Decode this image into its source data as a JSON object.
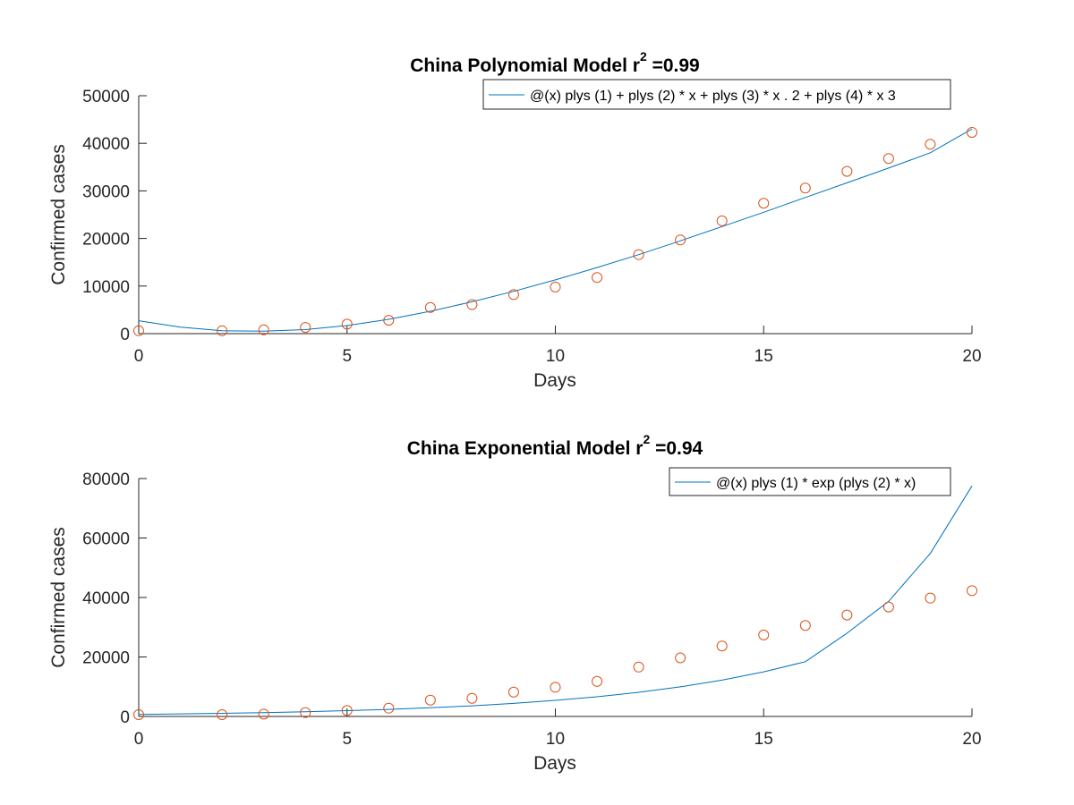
{
  "chart_data": [
    {
      "type": "scatter",
      "title": "China Polynomial Model r",
      "title_superscript": "2",
      "title_suffix": " =0.99",
      "xlabel": "Days",
      "ylabel": "Confirmed cases",
      "xlim": [
        0,
        20
      ],
      "ylim": [
        0,
        50000
      ],
      "xticks": [
        0,
        5,
        10,
        15,
        20
      ],
      "xtick_labels": [
        "0",
        "5",
        "10",
        "15",
        "20"
      ],
      "yticks": [
        0,
        10000,
        20000,
        30000,
        40000,
        50000
      ],
      "ytick_labels": [
        "0",
        "10000",
        "20000",
        "30000",
        "40000",
        "50000"
      ],
      "grid": false,
      "legend_position": "top-right",
      "series": [
        {
          "name": "@(x) plys (1) + plys (2) * x + plys (3) * x . 2 + plys (4) * x  3",
          "kind": "line",
          "color": "#0072BD",
          "x": [
            0,
            1,
            2,
            3,
            4,
            5,
            6,
            7,
            8,
            9,
            10,
            11,
            12,
            13,
            14,
            15,
            16,
            17,
            18,
            19,
            20
          ],
          "y": [
            2700,
            1350,
            600,
            500,
            850,
            1700,
            3000,
            4700,
            6700,
            8900,
            11300,
            13900,
            16600,
            19500,
            22500,
            25500,
            28600,
            31700,
            34800,
            38000,
            43000
          ]
        },
        {
          "name": "",
          "kind": "markers",
          "color": "#D95319",
          "x": [
            0,
            2,
            3,
            4,
            5,
            6,
            7,
            8,
            9,
            10,
            11,
            12,
            13,
            14,
            15,
            16,
            17,
            18,
            19,
            20
          ],
          "y": [
            600,
            600,
            800,
            1300,
            2000,
            2800,
            5500,
            6100,
            8200,
            9800,
            11800,
            16600,
            19700,
            23700,
            27400,
            30600,
            34100,
            36800,
            39800,
            42300
          ]
        }
      ]
    },
    {
      "type": "scatter",
      "title": "China Exponential Model r",
      "title_superscript": "2",
      "title_suffix": " =0.94",
      "xlabel": "Days",
      "ylabel": "Confirmed cases",
      "xlim": [
        0,
        20
      ],
      "ylim": [
        0,
        80000
      ],
      "xticks": [
        0,
        5,
        10,
        15,
        20
      ],
      "xtick_labels": [
        "0",
        "5",
        "10",
        "15",
        "20"
      ],
      "yticks": [
        0,
        20000,
        40000,
        60000,
        80000
      ],
      "ytick_labels": [
        "0",
        "20000",
        "40000",
        "60000",
        "80000"
      ],
      "grid": false,
      "legend_position": "top-right",
      "series": [
        {
          "name": "@(x) plys (1) * exp (plys (2) * x)",
          "kind": "line",
          "color": "#0072BD",
          "x": [
            0,
            1,
            2,
            3,
            4,
            5,
            6,
            7,
            8,
            9,
            10,
            11,
            12,
            13,
            14,
            15,
            16,
            17,
            18,
            19,
            20
          ],
          "y": [
            700,
            860,
            1050,
            1290,
            1580,
            1940,
            2380,
            2920,
            3580,
            4400,
            5400,
            6620,
            8120,
            9960,
            12220,
            15000,
            18400,
            28000,
            38700,
            54800,
            77500
          ]
        },
        {
          "name": "",
          "kind": "markers",
          "color": "#D95319",
          "x": [
            0,
            2,
            3,
            4,
            5,
            6,
            7,
            8,
            9,
            10,
            11,
            12,
            13,
            14,
            15,
            16,
            17,
            18,
            19,
            20
          ],
          "y": [
            600,
            600,
            800,
            1300,
            2000,
            2800,
            5500,
            6100,
            8200,
            9800,
            11800,
            16600,
            19700,
            23700,
            27400,
            30600,
            34100,
            36800,
            39800,
            42300
          ]
        }
      ]
    }
  ]
}
